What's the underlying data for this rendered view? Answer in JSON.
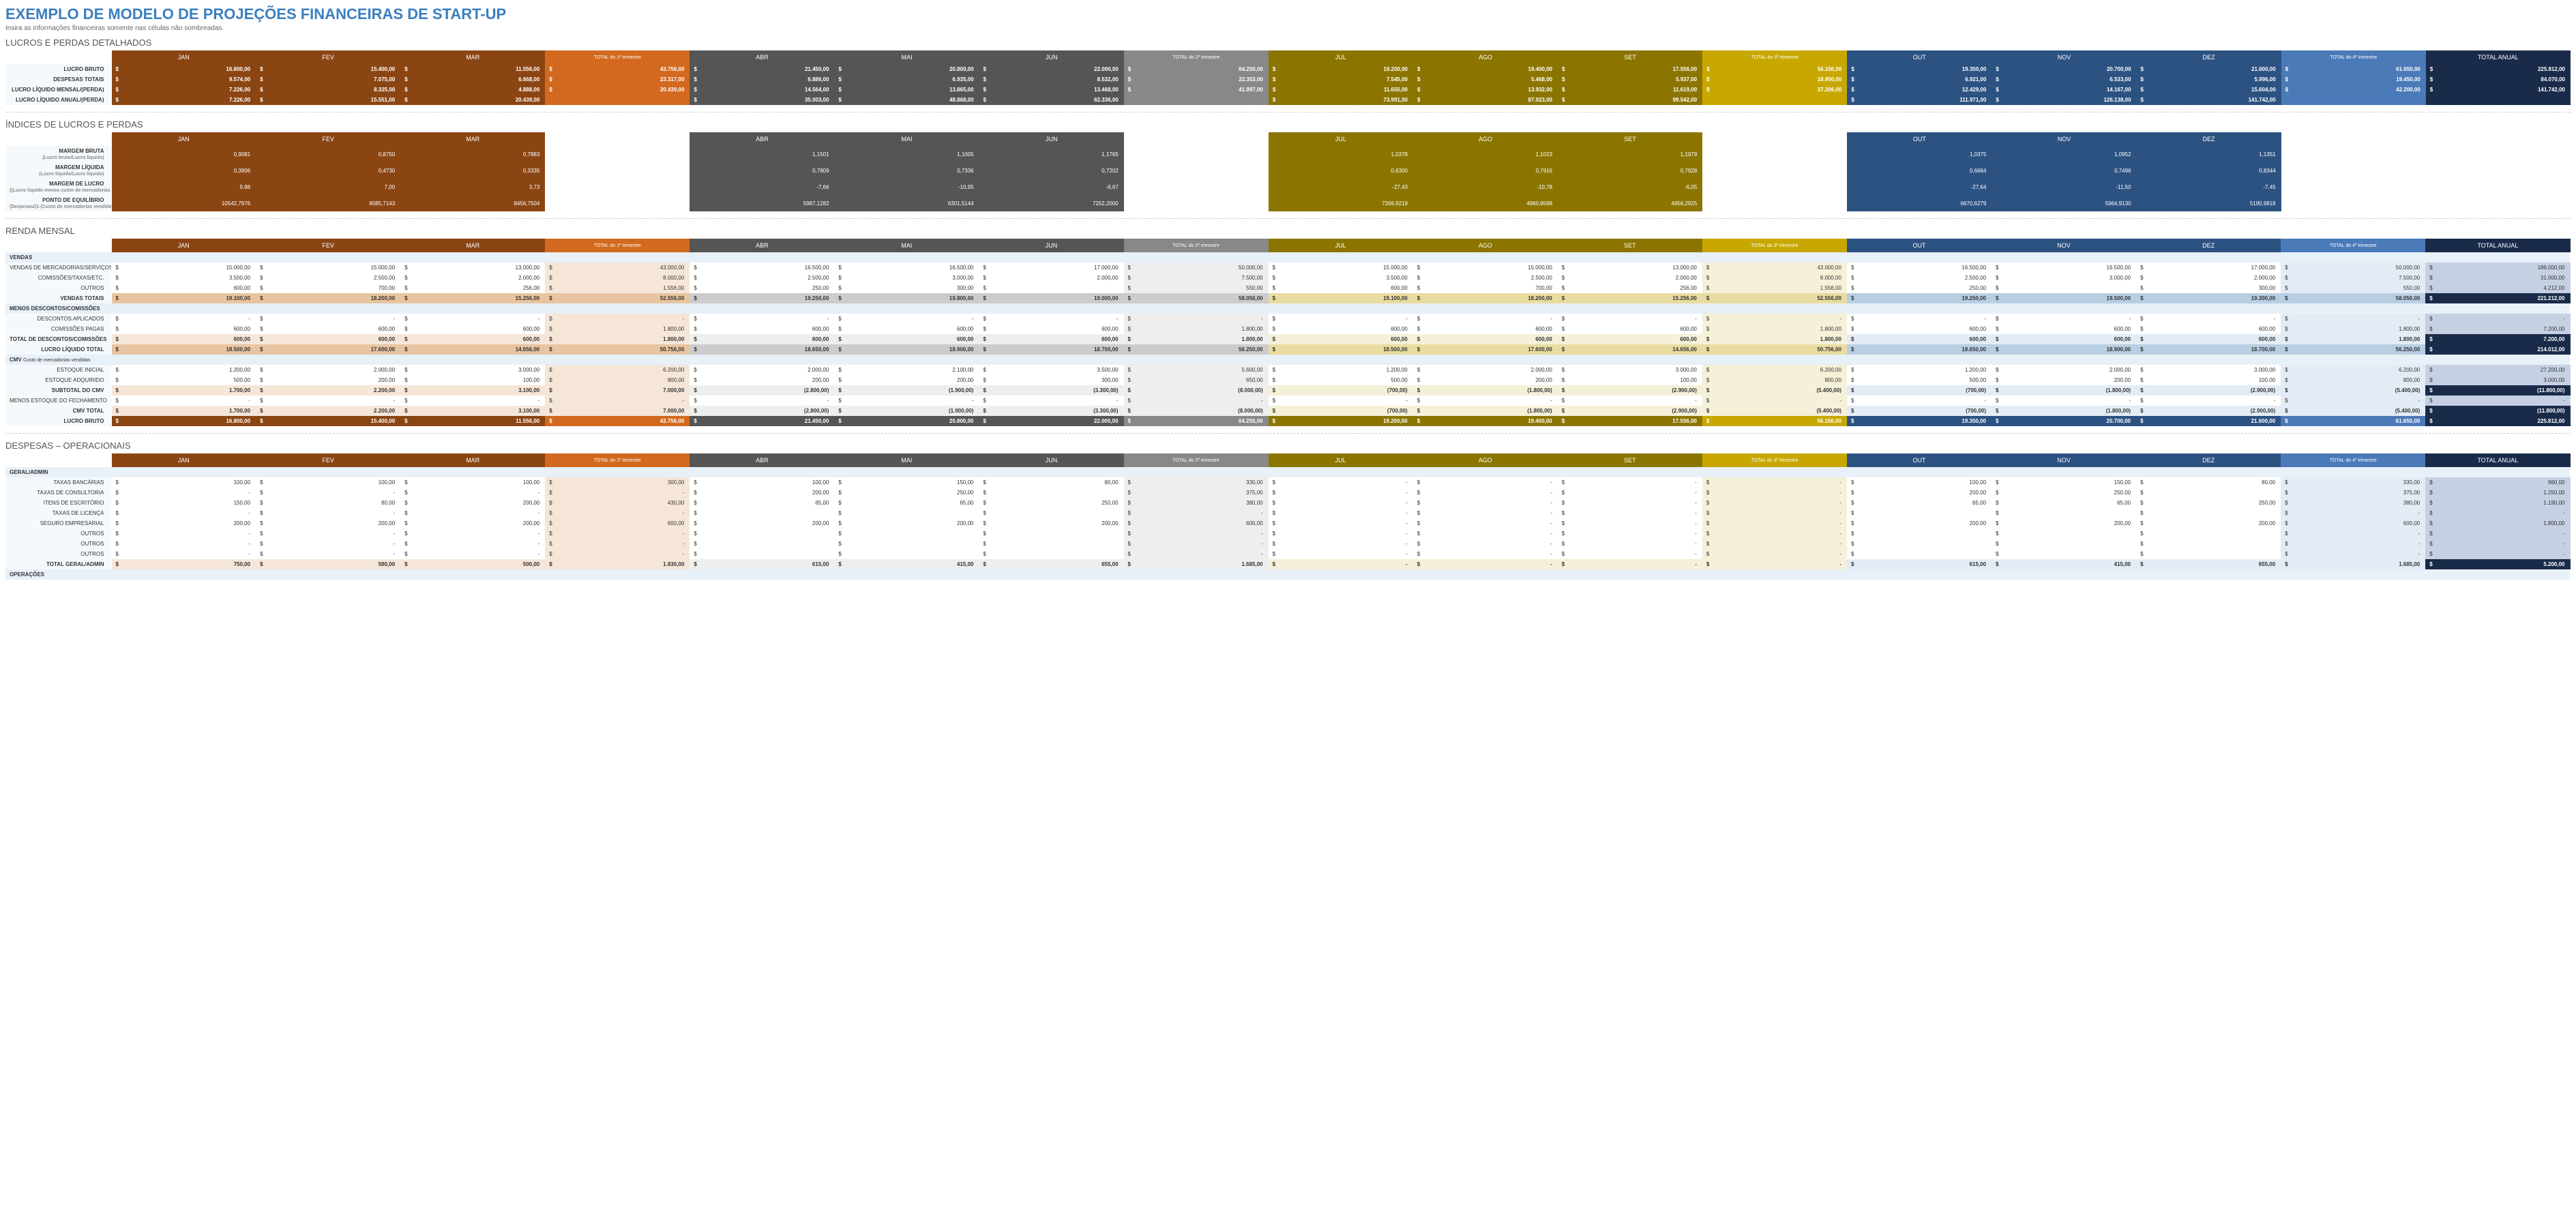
{
  "page": {
    "title": "EXEMPLO DE MODELO DE PROJEÇÕES FINANCEIRAS DE START-UP",
    "subtitle": "Insira as informações financeiras somente nas células não sombreadas."
  },
  "months": [
    "JAN",
    "FEV",
    "MAR",
    "ABR",
    "MAI",
    "JUN",
    "JUL",
    "AGO",
    "SET",
    "OUT",
    "NOV",
    "DEZ"
  ],
  "q_totals": [
    "TOTAL do 1º trimestre",
    "TOTAL do 2º trimestre",
    "TOTAL do 3º trimestre",
    "TOTAL do 4º trimestre"
  ],
  "annual_label": "TOTAL ANUAL",
  "sections": {
    "pl_detail": {
      "title": "LUCROS E PERDAS DETALHADOS",
      "rows": [
        {
          "label": "LUCRO BRUTO",
          "vals": [
            "16.800,00",
            "15.400,00",
            "11.556,00",
            "43.756,00",
            "21.450,00",
            "20.800,00",
            "22.000,00",
            "64.250,00",
            "19.200,00",
            "19.400,00",
            "17.556,00",
            "56.156,00",
            "19.350,00",
            "20.700,00",
            "21.600,00",
            "61.650,00",
            "225.812,00"
          ]
        },
        {
          "label": "DESPESAS TOTAIS",
          "vals": [
            "9.574,00",
            "7.075,00",
            "6.668,00",
            "23.317,00",
            "6.886,00",
            "6.935,00",
            "8.532,00",
            "22.353,00",
            "7.545,00",
            "5.468,00",
            "5.937,00",
            "18.950,00",
            "6.921,00",
            "6.533,00",
            "5.996,00",
            "19.450,00",
            "84.070,00"
          ]
        },
        {
          "label": "LUCRO LÍQUIDO MENSAL/(PERDA)",
          "vals": [
            "7.226,00",
            "8.325,00",
            "4.888,00",
            "20.439,00",
            "14.564,00",
            "13.865,00",
            "13.468,00",
            "41.897,00",
            "11.655,00",
            "13.932,00",
            "11.619,00",
            "37.206,00",
            "12.429,00",
            "14.167,00",
            "15.604,00",
            "42.200,00",
            "141.742,00"
          ]
        },
        {
          "label": "LUCRO LÍQUIDO ANUAL/(PERDA)",
          "vals": [
            "7.226,00",
            "15.551,00",
            "20.439,00",
            "",
            "35.003,00",
            "48.868,00",
            "62.336,00",
            "",
            "73.991,00",
            "87.923,00",
            "99.542,00",
            "",
            "111.971,00",
            "126.138,00",
            "141.742,00",
            "",
            ""
          ]
        }
      ]
    },
    "pl_indices": {
      "title": "ÍNDICES DE LUCROS E PERDAS",
      "rows": [
        {
          "label": "MARGEM BRUTA",
          "sub": "(Lucro bruto/Lucro líquido)",
          "vals": [
            "0,9081",
            "0,8750",
            "0,7883",
            "",
            "1,1501",
            "1,1005",
            "1,1765",
            "",
            "1,0378",
            "1,1023",
            "1,1979",
            "",
            "1,0375",
            "1,0952",
            "1,1351",
            "",
            ""
          ]
        },
        {
          "label": "MARGEM LÍQUIDA",
          "sub": "(Lucro líquido/Lucro líquido)",
          "vals": [
            "0,3906",
            "0,4730",
            "0,3335",
            "",
            "0,7809",
            "0,7336",
            "0,7202",
            "",
            "0,6300",
            "0,7916",
            "0,7928",
            "",
            "0,6664",
            "0,7496",
            "0,8344",
            "",
            ""
          ]
        },
        {
          "label": "MARGEM DE LUCRO",
          "sub": "((Lucro líquido menos custo de mercadorias vendidas)/(Custo das mercadorias vendidas)) x 100",
          "vals": [
            "9,88",
            "7,00",
            "3,73",
            "",
            "-7,66",
            "-10,95",
            "-6,67",
            "",
            "-27,43",
            "-10,78",
            "-6,05",
            "",
            "-27,64",
            "-11,50",
            "-7,45",
            "",
            ""
          ]
        },
        {
          "label": "PONTO DE EQUILÍBRIO",
          "sub": "(Despesas/(1-(Custo de mercadorias vendidas/Lucro líquido)))",
          "vals": [
            "10542,7976",
            "8085,7143",
            "8456,7504",
            "",
            "5987,1282",
            "6301,5144",
            "7252,2000",
            "",
            "7269,9219",
            "4960,6598",
            "4956,2925",
            "",
            "6670,6279",
            "5964,9130",
            "5190,9818",
            "",
            ""
          ]
        }
      ]
    },
    "renda": {
      "title": "RENDA MENSAL",
      "groups": [
        {
          "header": "VENDAS",
          "rows": [
            {
              "label": "VENDAS DE MERCADORIAS/SERVIÇOS",
              "vals": [
                "15.000,00",
                "15.000,00",
                "13.000,00",
                "43.000,00",
                "16.500,00",
                "16.500,00",
                "17.000,00",
                "50.000,00",
                "15.000,00",
                "15.000,00",
                "13.000,00",
                "43.000,00",
                "16.500,00",
                "16.500,00",
                "17.000,00",
                "50.000,00",
                "186.000,00"
              ]
            },
            {
              "label": "COMISSÕES/TAXAS/ETC.",
              "vals": [
                "3.500,00",
                "2.500,00",
                "2.000,00",
                "8.000,00",
                "2.500,00",
                "3.000,00",
                "2.000,00",
                "7.500,00",
                "3.500,00",
                "2.500,00",
                "2.000,00",
                "8.000,00",
                "2.500,00",
                "3.000,00",
                "2.000,00",
                "7.500,00",
                "31.000,00"
              ]
            },
            {
              "label": "OUTROS",
              "vals": [
                "600,00",
                "700,00",
                "256,00",
                "1.556,00",
                "250,00",
                "300,00",
                "",
                "550,00",
                "600,00",
                "700,00",
                "256,00",
                "1.556,00",
                "250,00",
                "",
                "300,00",
                "550,00",
                "4.212,00"
              ]
            },
            {
              "label": "VENDAS TOTAIS",
              "bold": true,
              "shade": "med",
              "vals": [
                "19.100,00",
                "18.200,00",
                "15.256,00",
                "52.556,00",
                "19.250,00",
                "19.800,00",
                "19.000,00",
                "58.050,00",
                "19.100,00",
                "18.200,00",
                "15.256,00",
                "52.556,00",
                "19.250,00",
                "19.500,00",
                "19.300,00",
                "58.050,00",
                "221.212,00"
              ]
            }
          ]
        },
        {
          "header": "MENOS DESCONTOS/COMISSÕES",
          "rows": [
            {
              "label": "DESCONTOS APLICADOS",
              "vals": [
                "-",
                "-",
                "-",
                "-",
                "-",
                "-",
                "-",
                "-",
                "-",
                "-",
                "-",
                "-",
                "-",
                "-",
                "-",
                "-",
                "-"
              ]
            },
            {
              "label": "COMISSÕES PAGAS",
              "vals": [
                "600,00",
                "600,00",
                "600,00",
                "1.800,00",
                "600,00",
                "600,00",
                "600,00",
                "1.800,00",
                "600,00",
                "600,00",
                "600,00",
                "1.800,00",
                "600,00",
                "600,00",
                "600,00",
                "1.800,00",
                "7.200,00"
              ]
            },
            {
              "label": "TOTAL DE DESCONTOS/COMISSÕES",
              "bold": true,
              "shade": "light",
              "vals": [
                "600,00",
                "600,00",
                "600,00",
                "1.800,00",
                "600,00",
                "600,00",
                "600,00",
                "1.800,00",
                "600,00",
                "600,00",
                "600,00",
                "1.800,00",
                "600,00",
                "600,00",
                "600,00",
                "1.800,00",
                "7.200,00"
              ]
            },
            {
              "label": "LUCRO LÍQUIDO TOTAL",
              "bold": true,
              "shade": "med",
              "vals": [
                "18.500,00",
                "17.600,00",
                "14.656,00",
                "50.756,00",
                "18.650,00",
                "18.900,00",
                "18.700,00",
                "56.250,00",
                "18.500,00",
                "17.600,00",
                "14.656,00",
                "50.756,00",
                "18.650,00",
                "18.900,00",
                "18.700,00",
                "56.250,00",
                "214.012,00"
              ]
            }
          ]
        },
        {
          "header": "CMV",
          "sub": "Custo de mercadorias vendidas",
          "rows": [
            {
              "label": "ESTOQUE INICIAL",
              "vals": [
                "1.200,00",
                "2.000,00",
                "3.000,00",
                "6.200,00",
                "2.000,00",
                "2.100,00",
                "3.500,00",
                "5.600,00",
                "1.200,00",
                "2.000,00",
                "3.000,00",
                "6.200,00",
                "1.200,00",
                "2.000,00",
                "3.000,00",
                "6.200,00",
                "27.200,00"
              ]
            },
            {
              "label": "ESTOQUE ADQUIRIDO",
              "vals": [
                "500,00",
                "200,00",
                "100,00",
                "800,00",
                "200,00",
                "200,00",
                "300,00",
                "650,00",
                "500,00",
                "200,00",
                "100,00",
                "800,00",
                "500,00",
                "200,00",
                "100,00",
                "800,00",
                "3.000,00"
              ]
            },
            {
              "label": "SUBTOTAL DO CMV",
              "bold": true,
              "shade": "light",
              "vals": [
                "1.700,00",
                "2.200,00",
                "3.100,00",
                "7.000,00",
                "(2.800,00)",
                "(1.900,00)",
                "(3.300,00)",
                "(8.000,00)",
                "(700,00)",
                "(1.800,00)",
                "(2.900,00)",
                "(5.400,00)",
                "(700,00)",
                "(1.800,00)",
                "(2.900,00)",
                "(5.400,00)",
                "(11.800,00)"
              ]
            },
            {
              "label": "MENOS ESTOQUE DO FECHAMENTO",
              "vals": [
                "-",
                "-",
                "-",
                "-",
                "-",
                "-",
                "-",
                "-",
                "-",
                "-",
                "-",
                "-",
                "-",
                "-",
                "-",
                "-",
                "-"
              ]
            },
            {
              "label": "CMV TOTAL",
              "bold": true,
              "shade": "light",
              "vals": [
                "1.700,00",
                "2.200,00",
                "3.100,00",
                "7.000,00",
                "(2.800,00)",
                "(1.900,00)",
                "(3.300,00)",
                "(8.000,00)",
                "(700,00)",
                "(1.800,00)",
                "(2.900,00)",
                "(5.400,00)",
                "(700,00)",
                "(1.800,00)",
                "(2.900,00)",
                "(5.400,00)",
                "(11.800,00)"
              ]
            },
            {
              "label": "LUCRO BRUTO",
              "bold": true,
              "shade": "dark",
              "vals": [
                "16.800,00",
                "15.400,00",
                "11.556,00",
                "43.756,00",
                "21.450,00",
                "20.800,00",
                "22.000,00",
                "64.250,00",
                "19.200,00",
                "19.400,00",
                "17.556,00",
                "56.156,00",
                "19.350,00",
                "20.700,00",
                "21.600,00",
                "61.650,00",
                "225.812,00"
              ]
            }
          ]
        }
      ]
    },
    "despesas": {
      "title": "DESPESAS – OPERACIONAIS",
      "groups": [
        {
          "header": "GERAL/ADMIN",
          "rows": [
            {
              "label": "TAXAS BANCÁRIAS",
              "vals": [
                "100,00",
                "100,00",
                "100,00",
                "300,00",
                "100,00",
                "150,00",
                "80,00",
                "330,00",
                "-",
                "-",
                "-",
                "-",
                "100,00",
                "150,00",
                "80,00",
                "330,00",
                "960,00"
              ]
            },
            {
              "label": "TAXAS DE CONSULTORIA",
              "vals": [
                "-",
                "-",
                "-",
                "-",
                "200,00",
                "250,00",
                "",
                "375,00",
                "-",
                "-",
                "-",
                "-",
                "200,00",
                "250,00",
                "",
                "375,00",
                "1.250,00"
              ]
            },
            {
              "label": "ITENS DE ESCRITÓRIO",
              "vals": [
                "150,00",
                "80,00",
                "200,00",
                "430,00",
                "65,00",
                "65,00",
                "250,00",
                "380,00",
                "-",
                "-",
                "-",
                "-",
                "65,00",
                "65,00",
                "250,00",
                "380,00",
                "1.190,00"
              ]
            },
            {
              "label": "TAXAS DE LICENÇA",
              "vals": [
                "-",
                "-",
                "-",
                "-",
                "",
                "",
                "",
                "-",
                "-",
                "-",
                "-",
                "-",
                "",
                "",
                "",
                "-",
                "-"
              ]
            },
            {
              "label": "SEGURO EMPRESARIAL",
              "vals": [
                "200,00",
                "200,00",
                "200,00",
                "600,00",
                "200,00",
                "200,00",
                "200,00",
                "600,00",
                "-",
                "-",
                "-",
                "-",
                "200,00",
                "200,00",
                "200,00",
                "600,00",
                "1.800,00"
              ]
            },
            {
              "label": "OUTROS",
              "vals": [
                "-",
                "-",
                "-",
                "-",
                "",
                "",
                "",
                "-",
                "-",
                "-",
                "-",
                "-",
                "",
                "",
                "",
                "-",
                "-"
              ]
            },
            {
              "label": "OUTROS",
              "vals": [
                "-",
                "-",
                "-",
                "-",
                "",
                "",
                "",
                "-",
                "-",
                "-",
                "-",
                "-",
                "",
                "",
                "",
                "-",
                "-"
              ]
            },
            {
              "label": "OUTROS",
              "vals": [
                "-",
                "-",
                "-",
                "-",
                "",
                "",
                "",
                "-",
                "-",
                "-",
                "-",
                "-",
                "",
                "",
                "",
                "-",
                "-"
              ]
            },
            {
              "label": "TOTAL GERAL/ADMIN",
              "bold": true,
              "shade": "light",
              "vals": [
                "750,00",
                "580,00",
                "500,00",
                "1.830,00",
                "615,00",
                "415,00",
                "655,00",
                "1.685,00",
                "-",
                "-",
                "-",
                "-",
                "615,00",
                "415,00",
                "655,00",
                "1.685,00",
                "5.200,00"
              ]
            }
          ]
        },
        {
          "header": "OPERAÇÕES",
          "rows": []
        }
      ]
    }
  },
  "colors": {
    "q1": "#8b4513",
    "q1_total": "#d2691e",
    "q1_light": "#f5e6d8",
    "q1_med": "#e8c4a0",
    "q2": "#555555",
    "q2_total": "#888888",
    "q2_light": "#eeeeee",
    "q2_med": "#cccccc",
    "q3": "#8b7500",
    "q3_total": "#c8a800",
    "q3_light": "#f5f0d8",
    "q3_med": "#e8dca0",
    "q4": "#2c5282",
    "q4_total": "#4a7ab8",
    "q4_light": "#e3ecf5",
    "q4_med": "#b8cee3",
    "annual": "#1a2b4a"
  }
}
